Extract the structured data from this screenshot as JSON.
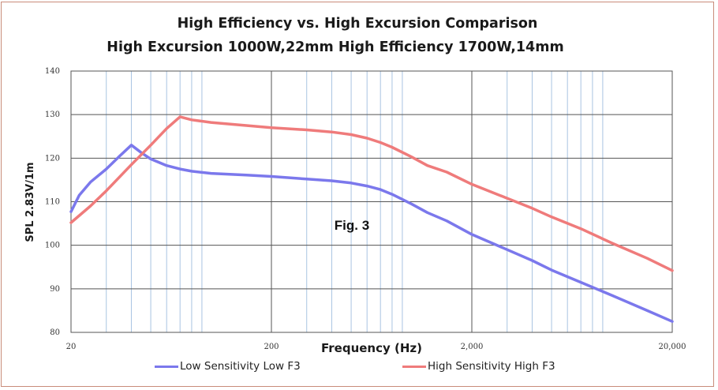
{
  "chart_data": {
    "type": "line",
    "title": "High Efficiency vs. High Excursion Comparison",
    "subtitle": "High Excursion 1000W,22mm  High Efficiency 1700W,14mm",
    "xlabel": "Frequency (Hz)",
    "ylabel": "SPL 2.83V/1m",
    "xscale": "log",
    "xlim": [
      20,
      20000
    ],
    "ylim": [
      80,
      140
    ],
    "x_ticks": [
      20,
      200,
      2000,
      20000
    ],
    "x_tick_labels": [
      "20",
      "200",
      "2,000",
      "20,000"
    ],
    "y_ticks": [
      80,
      90,
      100,
      110,
      120,
      130,
      140
    ],
    "y_tick_labels": [
      "80",
      "90",
      "100",
      "110",
      "120",
      "130",
      "140"
    ],
    "grid": true,
    "legend_position": "bottom",
    "annotation": "Fig. 3",
    "series": [
      {
        "name": "Low Sensitivity Low F3",
        "color": "#7b78ec",
        "points": [
          [
            20,
            107.7
          ],
          [
            22,
            111.5
          ],
          [
            25,
            114.5
          ],
          [
            30,
            117.5
          ],
          [
            35,
            120.5
          ],
          [
            40,
            123.0
          ],
          [
            45,
            121.2
          ],
          [
            50,
            119.8
          ],
          [
            60,
            118.3
          ],
          [
            70,
            117.5
          ],
          [
            80,
            117.0
          ],
          [
            100,
            116.5
          ],
          [
            150,
            116.1
          ],
          [
            200,
            115.8
          ],
          [
            300,
            115.2
          ],
          [
            400,
            114.8
          ],
          [
            500,
            114.3
          ],
          [
            600,
            113.6
          ],
          [
            700,
            112.8
          ],
          [
            800,
            111.7
          ],
          [
            1000,
            109.5
          ],
          [
            1200,
            107.5
          ],
          [
            1500,
            105.6
          ],
          [
            2000,
            102.5
          ],
          [
            3000,
            99.0
          ],
          [
            4000,
            96.5
          ],
          [
            5000,
            94.3
          ],
          [
            7000,
            91.5
          ],
          [
            10000,
            88.5
          ],
          [
            15000,
            85.0
          ],
          [
            20000,
            82.5
          ]
        ]
      },
      {
        "name": "High Sensitivity  High F3",
        "color": "#ef7b7b",
        "points": [
          [
            20,
            105.2
          ],
          [
            25,
            109.0
          ],
          [
            30,
            112.5
          ],
          [
            40,
            118.5
          ],
          [
            50,
            123.0
          ],
          [
            60,
            126.8
          ],
          [
            70,
            129.5
          ],
          [
            80,
            128.8
          ],
          [
            100,
            128.2
          ],
          [
            150,
            127.5
          ],
          [
            200,
            127.0
          ],
          [
            300,
            126.5
          ],
          [
            400,
            126.0
          ],
          [
            500,
            125.4
          ],
          [
            600,
            124.6
          ],
          [
            700,
            123.6
          ],
          [
            800,
            122.5
          ],
          [
            1000,
            120.3
          ],
          [
            1200,
            118.3
          ],
          [
            1500,
            116.8
          ],
          [
            2000,
            114.0
          ],
          [
            3000,
            110.8
          ],
          [
            4000,
            108.5
          ],
          [
            5000,
            106.5
          ],
          [
            7000,
            103.8
          ],
          [
            10000,
            100.5
          ],
          [
            15000,
            97.0
          ],
          [
            20000,
            94.2
          ]
        ]
      }
    ]
  }
}
